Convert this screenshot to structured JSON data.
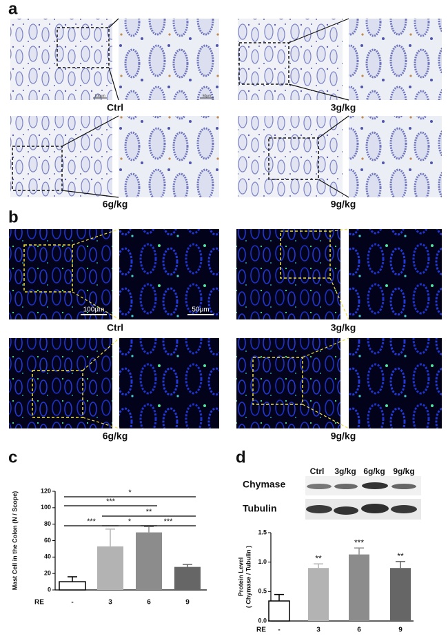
{
  "panels": [
    {
      "label": "a",
      "images": [
        "Ctrl",
        "3g/kg",
        "6g/kg",
        "9g/kg"
      ],
      "scale_bars": [
        "100μm",
        "50μm"
      ]
    },
    {
      "label": "b",
      "images": [
        "Ctrl",
        "3g/kg",
        "6g/kg",
        "9g/kg"
      ],
      "scale_bars": [
        "100μm",
        "50μm"
      ]
    }
  ],
  "chart_data": [
    {
      "type": "bar",
      "label": "c",
      "y_label": "Mast Cell in the Colon (N / Scope)",
      "x_label": "RE",
      "categories": [
        "-",
        "3",
        "6",
        "9"
      ],
      "values": [
        10,
        53,
        70,
        28
      ],
      "errors": [
        6,
        21,
        7,
        3
      ],
      "colors": [
        "#ffffff",
        "#b3b3b3",
        "#8c8c8c",
        "#666666"
      ],
      "ylim": [
        0,
        120
      ],
      "yticks": [
        0,
        20,
        40,
        60,
        80,
        100,
        120
      ],
      "comparisons": [
        {
          "groups": [
            "-",
            "9"
          ],
          "label": "*"
        },
        {
          "groups": [
            "-",
            "6"
          ],
          "label": "***"
        },
        {
          "groups": [
            "3",
            "9"
          ],
          "label": "**"
        },
        {
          "groups": [
            "-",
            "3"
          ],
          "label": "***"
        },
        {
          "groups": [
            "3",
            "6"
          ],
          "label": "*"
        },
        {
          "groups": [
            "6",
            "9"
          ],
          "label": "***"
        }
      ]
    },
    {
      "type": "bar",
      "label": "d",
      "blot": {
        "lanes": [
          "Ctrl",
          "3g/kg",
          "6g/kg",
          "9g/kg"
        ],
        "rows": [
          "Chymase",
          "Tubulin"
        ]
      },
      "y_label": [
        "Protein Level",
        "( Chymase / Tubulin )"
      ],
      "x_label": "RE",
      "categories": [
        "-",
        "3",
        "6",
        "9"
      ],
      "values": [
        0.34,
        0.9,
        1.13,
        0.9
      ],
      "errors": [
        0.11,
        0.07,
        0.11,
        0.11
      ],
      "annotations": [
        null,
        "**",
        "***",
        "**"
      ],
      "colors": [
        "#ffffff",
        "#b3b3b3",
        "#8c8c8c",
        "#666666"
      ],
      "ylim": [
        0,
        1.5
      ],
      "yticks": [
        {
          "value": 0,
          "label": "0.0"
        },
        0.5,
        {
          "value": 1,
          "label": "1.0"
        },
        1.5
      ]
    }
  ]
}
